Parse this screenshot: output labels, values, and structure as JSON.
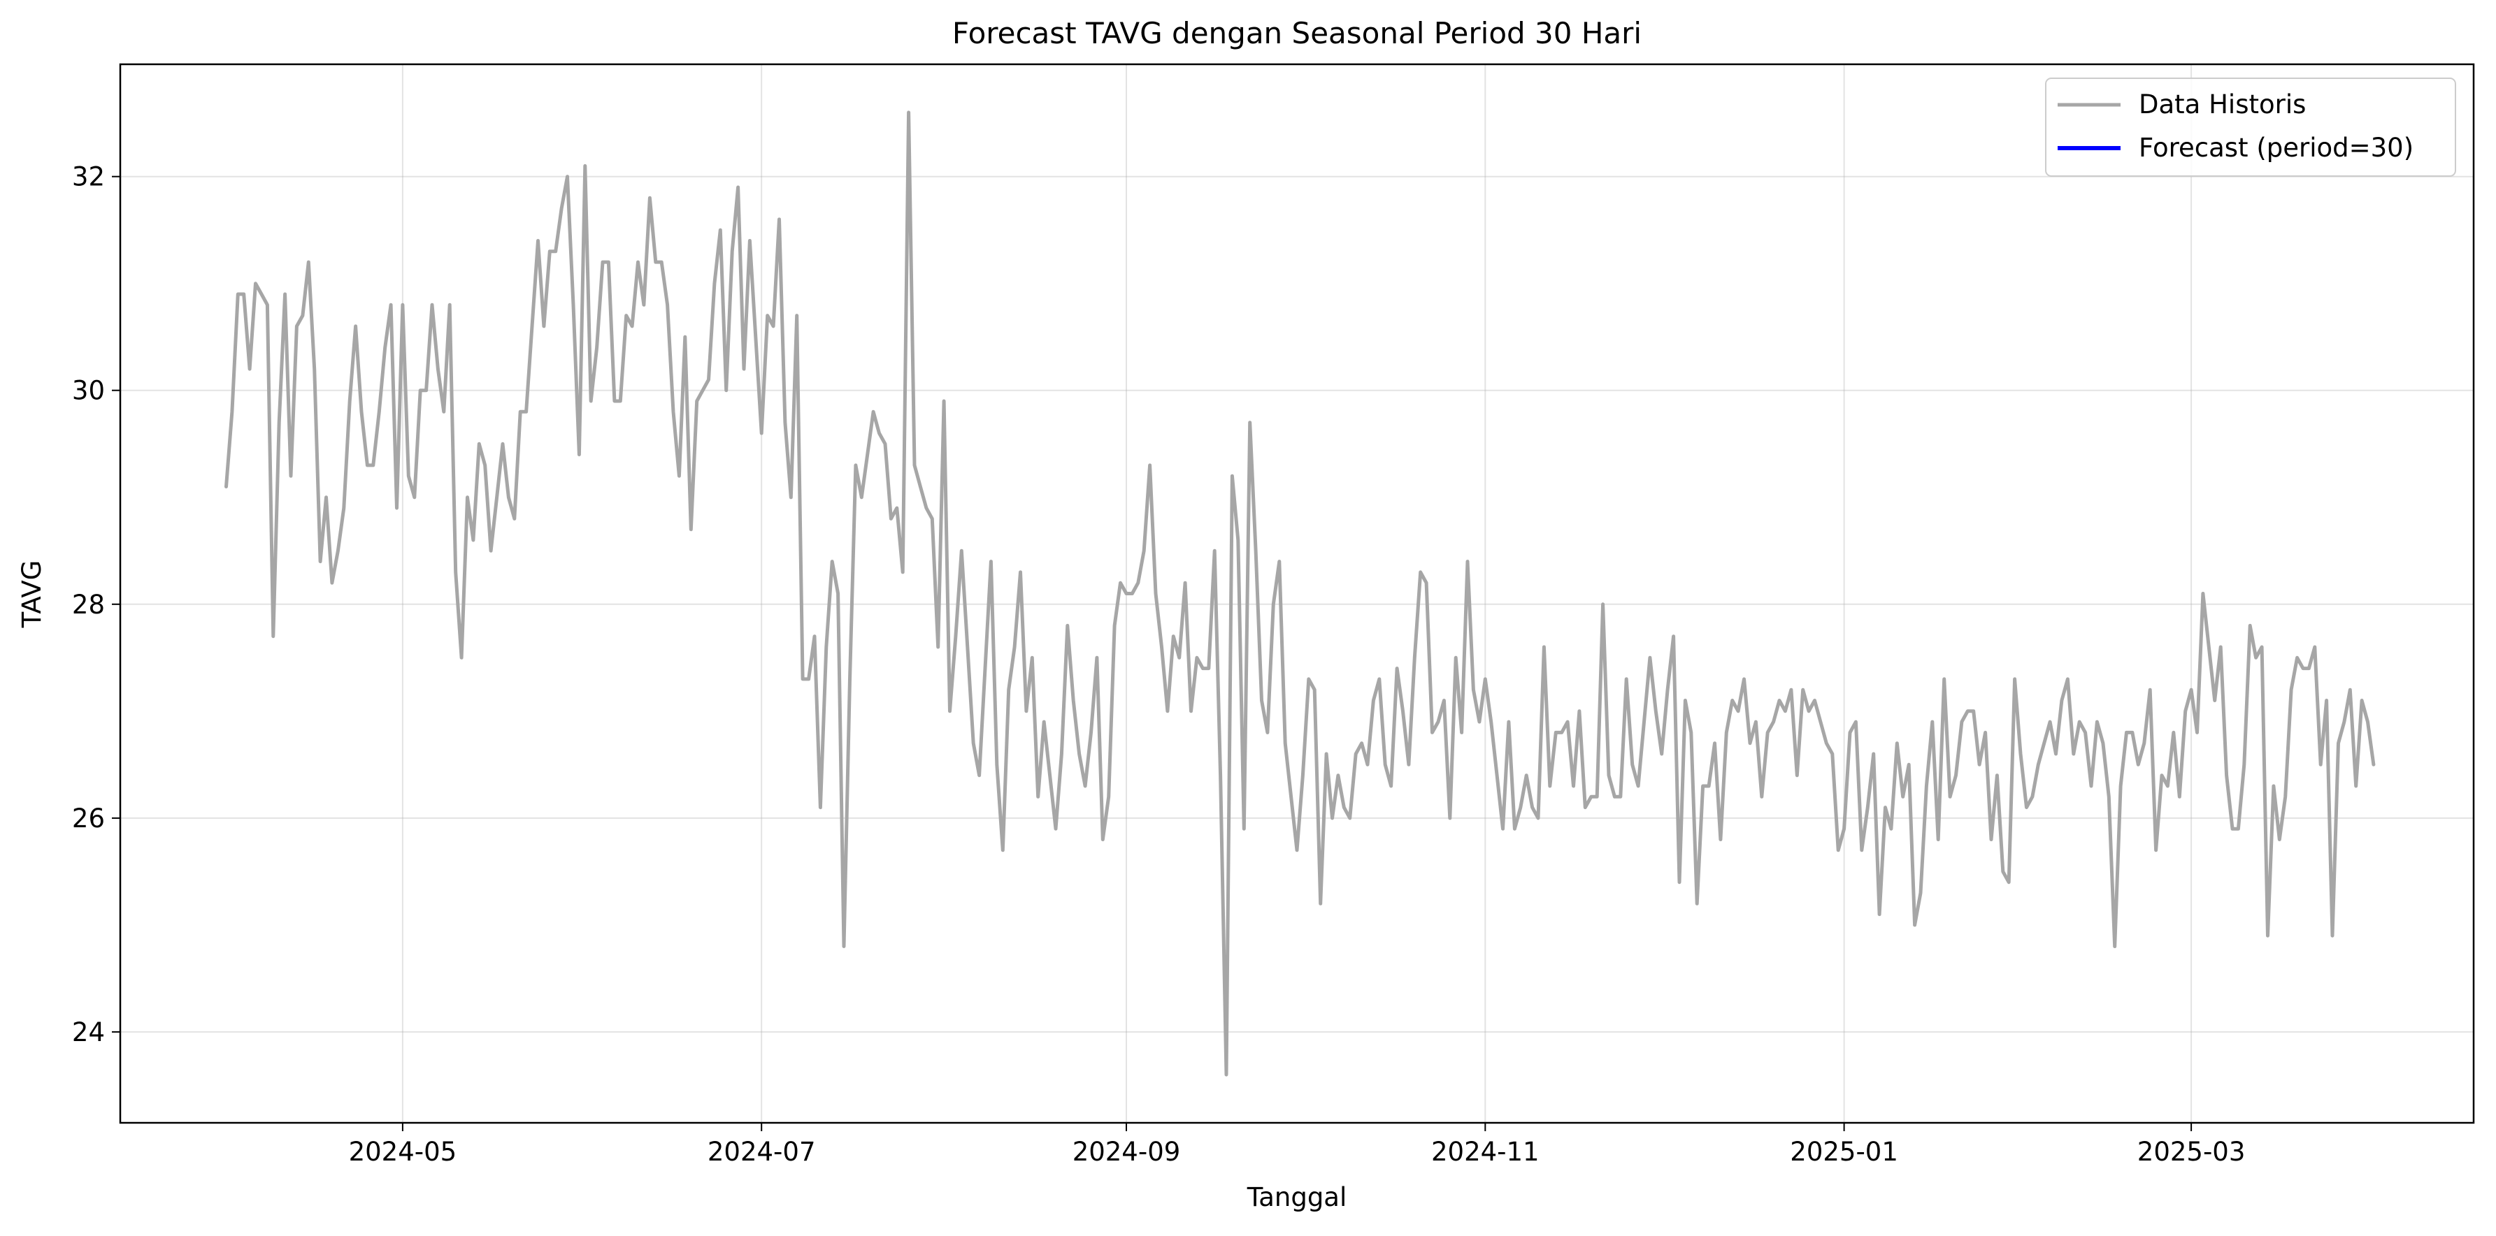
{
  "chart_data": {
    "type": "line",
    "title": "Forecast TAVG dengan Seasonal Period 30 Hari",
    "xlabel": "Tanggal",
    "ylabel": "TAVG",
    "x_start": "2024-04-01",
    "x_end": "2025-03-31",
    "xlim": [
      "2024-03-14",
      "2025-04-18"
    ],
    "ylim": [
      23.15,
      33.05
    ],
    "x_ticks": [
      "2024-05",
      "2024-07",
      "2024-09",
      "2024-11",
      "2025-01",
      "2025-03"
    ],
    "y_ticks": [
      24,
      26,
      28,
      30,
      32
    ],
    "grid": true,
    "legend_position": "top-right",
    "series": [
      {
        "name": "Data Historis",
        "color": "#a6a6a6",
        "values": [
          29.1,
          29.8,
          30.9,
          30.9,
          30.2,
          31.0,
          30.9,
          30.8,
          27.7,
          29.7,
          30.9,
          29.2,
          30.6,
          30.7,
          31.2,
          30.2,
          28.4,
          29.0,
          28.2,
          28.5,
          28.9,
          29.9,
          30.6,
          29.8,
          29.3,
          29.3,
          29.8,
          30.4,
          30.8,
          28.9,
          30.8,
          29.2,
          29.0,
          30.0,
          30.0,
          30.8,
          30.2,
          29.8,
          30.8,
          28.3,
          27.5,
          29.0,
          28.6,
          29.5,
          29.3,
          28.5,
          29.0,
          29.5,
          29.0,
          28.8,
          29.8,
          29.8,
          30.6,
          31.4,
          30.6,
          31.3,
          31.3,
          31.7,
          32.0,
          30.8,
          29.4,
          32.1,
          29.9,
          30.4,
          31.2,
          31.2,
          29.9,
          29.9,
          30.7,
          30.6,
          31.2,
          30.8,
          31.8,
          31.2,
          31.2,
          30.8,
          29.8,
          29.2,
          30.5,
          28.7,
          29.9,
          30.0,
          30.1,
          31.0,
          31.5,
          30.0,
          31.3,
          31.9,
          30.2,
          31.4,
          30.5,
          29.6,
          30.7,
          30.6,
          31.6,
          29.7,
          29.0,
          30.7,
          27.3,
          27.3,
          27.7,
          26.1,
          27.6,
          28.4,
          28.1,
          24.8,
          27.3,
          29.3,
          29.0,
          29.4,
          29.8,
          29.6,
          29.5,
          28.8,
          28.9,
          28.3,
          32.6,
          29.3,
          29.1,
          28.9,
          28.8,
          27.6,
          29.9,
          27.0,
          27.7,
          28.5,
          27.6,
          26.7,
          26.4,
          27.4,
          28.4,
          26.5,
          25.7,
          27.2,
          27.6,
          28.3,
          27.0,
          27.5,
          26.2,
          26.9,
          26.4,
          25.9,
          26.6,
          27.8,
          27.1,
          26.6,
          26.3,
          26.8,
          27.5,
          25.8,
          26.2,
          27.8,
          28.2,
          28.1,
          28.1,
          28.2,
          28.5,
          29.3,
          28.1,
          27.6,
          27.0,
          27.7,
          27.5,
          28.2,
          27.0,
          27.5,
          27.4,
          27.4,
          28.5,
          26.4,
          23.6,
          29.2,
          28.6,
          25.9,
          29.7,
          28.5,
          27.1,
          26.8,
          28.0,
          28.4,
          26.7,
          26.2,
          25.7,
          26.4,
          27.3,
          27.2,
          25.2,
          26.6,
          26.0,
          26.4,
          26.1,
          26.0,
          26.6,
          26.7,
          26.5,
          27.1,
          27.3,
          26.5,
          26.3,
          27.4,
          27.0,
          26.5,
          27.5,
          28.3,
          28.2,
          26.8,
          26.9,
          27.1,
          26.0,
          27.5,
          26.8,
          28.4,
          27.2,
          26.9,
          27.3,
          26.9,
          26.4,
          25.9,
          26.9,
          25.9,
          26.1,
          26.4,
          26.1,
          26.0,
          27.6,
          26.3,
          26.8,
          26.8,
          26.9,
          26.3,
          27.0,
          26.1,
          26.2,
          26.2,
          28.0,
          26.4,
          26.2,
          26.2,
          27.3,
          26.5,
          26.3,
          26.9,
          27.5,
          27.0,
          26.6,
          27.2,
          27.7,
          25.4,
          27.1,
          26.8,
          25.2,
          26.3,
          26.3,
          26.7,
          25.8,
          26.8,
          27.1,
          27.0,
          27.3,
          26.7,
          26.9,
          26.2,
          26.8,
          26.9,
          27.1,
          27.0,
          27.2,
          26.4,
          27.2,
          27.0,
          27.1,
          26.9,
          26.7,
          26.6,
          25.7,
          25.9,
          26.8,
          26.9,
          25.7,
          26.1,
          26.6,
          25.1,
          26.1,
          25.9,
          26.7,
          26.2,
          26.5,
          25.0,
          25.3,
          26.3,
          26.9,
          25.8,
          27.3,
          26.2,
          26.4,
          26.9,
          27.0,
          27.0,
          26.5,
          26.8,
          25.8,
          26.4,
          25.5,
          25.4,
          27.3,
          26.6,
          26.1,
          26.2,
          26.5,
          26.7,
          26.9,
          26.6,
          27.1,
          27.3,
          26.6,
          26.9,
          26.8,
          26.3,
          26.9,
          26.7,
          26.2,
          24.8,
          26.3,
          26.8,
          26.8,
          26.5,
          26.7,
          27.2,
          25.7,
          26.4,
          26.3,
          26.8,
          26.2,
          27.0,
          27.2,
          26.8,
          28.1,
          27.6,
          27.1,
          27.6,
          26.4,
          25.9,
          25.9,
          26.5,
          27.8,
          27.5,
          27.6,
          24.9,
          26.3,
          25.8,
          26.2,
          27.2,
          27.5,
          27.4,
          27.4,
          27.6,
          26.5,
          27.1,
          24.9,
          26.7,
          26.9,
          27.2,
          26.3,
          27.1,
          26.9,
          26.5
        ]
      },
      {
        "name": "Forecast (period=30)",
        "color": "#0000ff",
        "values": []
      }
    ]
  }
}
